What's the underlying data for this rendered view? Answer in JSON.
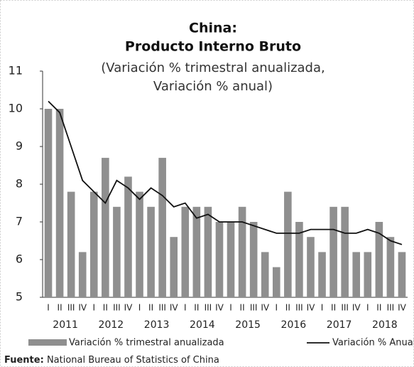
{
  "chart_data": {
    "type": "bar",
    "title": "China:",
    "title2": "Producto Interno Bruto",
    "subtitle": "(Variación % trimestral anualizada,",
    "subtitle2": "Variación % anual)",
    "categories": [
      "I",
      "II",
      "III",
      "IV",
      "I",
      "II",
      "III",
      "IV",
      "I",
      "II",
      "III",
      "IV",
      "I",
      "II",
      "III",
      "IV",
      "I",
      "II",
      "III",
      "IV",
      "I",
      "II",
      "III",
      "IV",
      "I",
      "II",
      "III",
      "IV",
      "I",
      "II",
      "III",
      "IV"
    ],
    "years": [
      "2011",
      "2012",
      "2013",
      "2014",
      "2015",
      "2016",
      "2017",
      "2018"
    ],
    "series": [
      {
        "name": "Variación % trimestral anualizada",
        "type": "bar",
        "color": "#8f8f8f",
        "values": [
          10.0,
          10.0,
          7.8,
          6.2,
          7.8,
          8.7,
          7.4,
          8.2,
          7.8,
          7.4,
          8.7,
          6.6,
          7.4,
          7.4,
          7.4,
          7.0,
          7.0,
          7.4,
          7.0,
          6.2,
          5.8,
          7.8,
          7.0,
          6.6,
          6.2,
          7.4,
          7.4,
          6.2,
          6.2,
          7.0,
          6.6,
          6.2
        ]
      },
      {
        "name": "Variación % Anual",
        "type": "line",
        "color": "#111111",
        "values": [
          10.2,
          9.9,
          9.0,
          8.1,
          7.8,
          7.5,
          8.1,
          7.9,
          7.6,
          7.9,
          7.7,
          7.4,
          7.5,
          7.1,
          7.2,
          7.0,
          7.0,
          7.0,
          6.9,
          6.8,
          6.7,
          6.7,
          6.7,
          6.8,
          6.8,
          6.8,
          6.7,
          6.7,
          6.8,
          6.7,
          6.5,
          6.4
        ]
      }
    ],
    "ylim": [
      5,
      11
    ],
    "yticks": [
      5,
      6,
      7,
      8,
      9,
      10,
      11
    ],
    "source_label": "Fuente:",
    "source": "National Bureau of Statistics of China"
  }
}
